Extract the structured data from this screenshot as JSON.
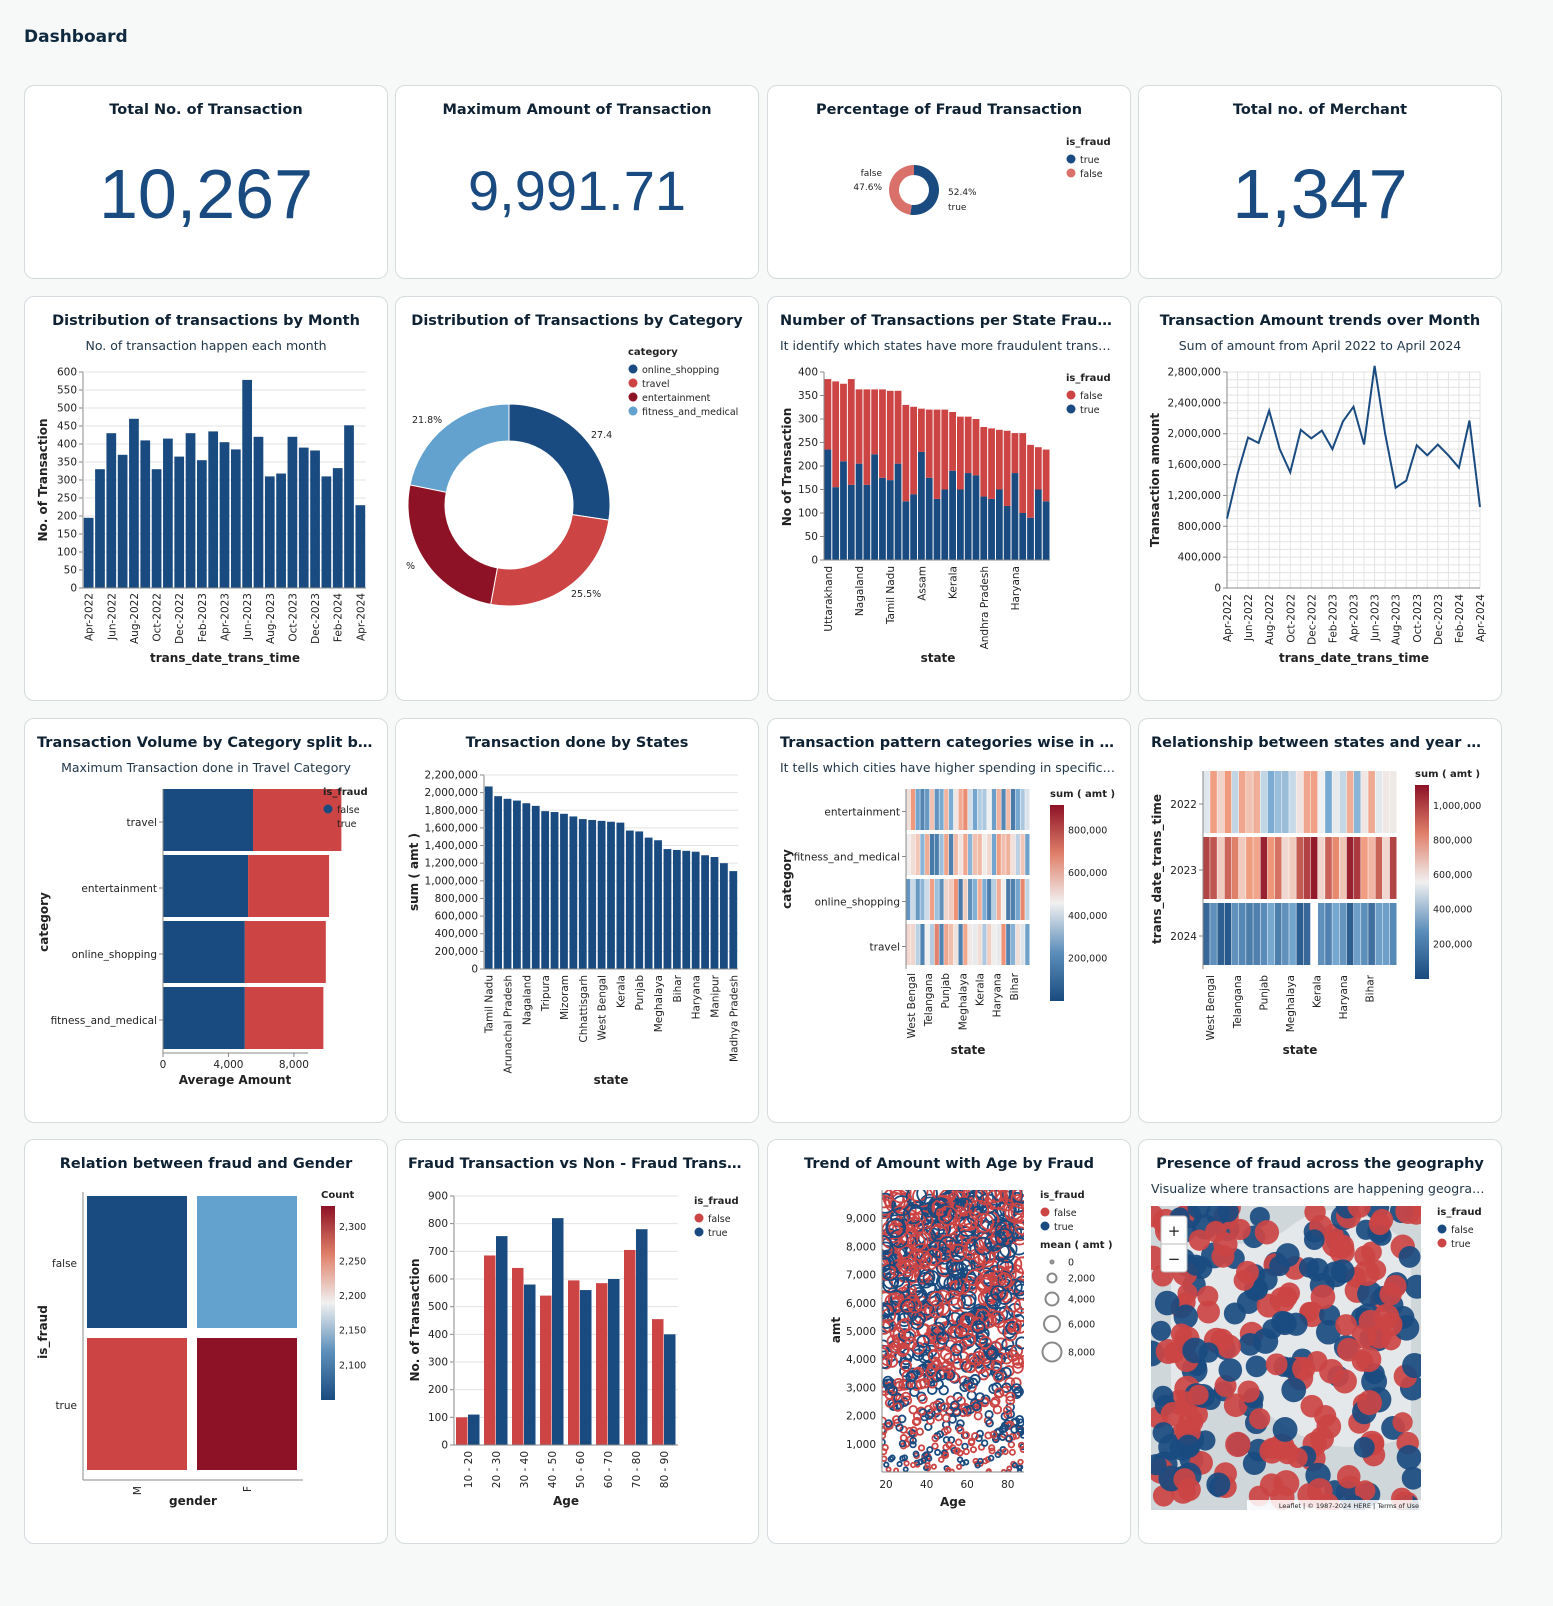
{
  "page_title": "Dashboard",
  "colors": {
    "blue": "#1a4b80",
    "red": "#cc4444",
    "darkred": "#8d1226",
    "lightblue": "#63a2cf"
  },
  "kpis": [
    {
      "title": "Total No. of Transaction",
      "value": "10,267"
    },
    {
      "title": "Maximum Amount of Transaction",
      "value": "9,991.71"
    },
    {
      "title": "Total no. of Merchant",
      "value": "1,347"
    }
  ],
  "chart_data": [
    {
      "id": "fraud_pct",
      "type": "pie",
      "title": "Percentage of Fraud Transaction",
      "legend_title": "is_fraud",
      "legend_position": "top-right",
      "categories": [
        "true",
        "false"
      ],
      "values": [
        52.4,
        47.6
      ],
      "data_labels": [
        "52.4%",
        "47.6%"
      ]
    },
    {
      "id": "by_month",
      "type": "bar",
      "title": "Distribution of transactions by Month",
      "subtitle": "No. of transaction happen each month",
      "xlabel": "trans_date_trans_time",
      "ylabel": "No. of Transaction",
      "ylim": [
        0,
        600
      ],
      "yticks": [
        "0",
        "50",
        "100",
        "150",
        "200",
        "250",
        "300",
        "350",
        "400",
        "450",
        "500",
        "550",
        "600"
      ],
      "xticks": [
        "Apr-2022",
        "Jun-2022",
        "Aug-2022",
        "Oct-2022",
        "Dec-2022",
        "Feb-2023",
        "Apr-2023",
        "Jun-2023",
        "Aug-2023",
        "Oct-2023",
        "Dec-2023",
        "Feb-2024",
        "Apr-2024"
      ],
      "values": [
        195,
        330,
        430,
        370,
        470,
        410,
        330,
        415,
        365,
        430,
        355,
        435,
        405,
        385,
        578,
        420,
        310,
        318,
        420,
        390,
        382,
        310,
        333,
        452,
        230
      ]
    },
    {
      "id": "by_category",
      "type": "pie",
      "title": "Distribution of Transactions by Category",
      "legend_title": "category",
      "legend_position": "top-right",
      "categories": [
        "online_shopping",
        "travel",
        "entertainment",
        "fitness_and_medical"
      ],
      "values": [
        27.4,
        25.5,
        25.3,
        21.8
      ],
      "data_labels": [
        "27.4",
        "25.5%",
        "%",
        "21.8%"
      ]
    },
    {
      "id": "state_fraud",
      "type": "bar",
      "title": "Number of Transactions per State Fraud wi...",
      "subtitle": "It identify which states have more fraudulent transact...",
      "xlabel": "state",
      "ylabel": "No of Transaction",
      "ylim": [
        0,
        400
      ],
      "yticks": [
        "0",
        "50",
        "100",
        "150",
        "200",
        "250",
        "300",
        "350",
        "400"
      ],
      "xticks": [
        "Uttarakhand",
        "Nagaland",
        "Tamil Nadu",
        "Assam",
        "Kerala",
        "Andhra Pradesh",
        "Haryana"
      ],
      "legend_title": "is_fraud",
      "legend_position": "top-right",
      "series": [
        {
          "name": "true",
          "values": [
            235,
            155,
            210,
            160,
            205,
            160,
            225,
            175,
            170,
            205,
            125,
            140,
            230,
            175,
            130,
            150,
            190,
            150,
            185,
            180,
            135,
            130,
            150,
            115,
            185,
            100,
            90,
            150,
            125
          ]
        },
        {
          "name": "false",
          "values": [
            150,
            225,
            165,
            225,
            158,
            203,
            138,
            188,
            190,
            155,
            205,
            186,
            92,
            145,
            190,
            170,
            125,
            155,
            120,
            120,
            148,
            150,
            127,
            160,
            85,
            170,
            155,
            90,
            110
          ]
        }
      ]
    },
    {
      "id": "amount_trend",
      "type": "line",
      "title": "Transaction Amount trends over Month",
      "subtitle": "Sum of amount from April 2022 to April 2024",
      "xlabel": "trans_date_trans_time",
      "ylabel": "Transaction amount",
      "ylim": [
        0,
        2800000
      ],
      "yticks": [
        "0",
        "400,000",
        "800,000",
        "1,200,000",
        "1,600,000",
        "2,000,000",
        "2,400,000",
        "2,800,000"
      ],
      "xticks": [
        "Apr-2022",
        "Jun-2022",
        "Aug-2022",
        "Oct-2022",
        "Dec-2022",
        "Feb-2023",
        "Apr-2023",
        "Jun-2023",
        "Aug-2023",
        "Oct-2023",
        "Dec-2023",
        "Feb-2024",
        "Apr-2024"
      ],
      "grid": true,
      "values": [
        900000,
        1480000,
        1950000,
        1880000,
        2300000,
        1800000,
        1500000,
        2050000,
        1940000,
        2040000,
        1800000,
        2160000,
        2350000,
        1860000,
        2880000,
        2000000,
        1300000,
        1390000,
        1850000,
        1720000,
        1860000,
        1720000,
        1560000,
        2170000,
        1050000
      ]
    },
    {
      "id": "category_fraud",
      "type": "bar",
      "orientation": "horizontal",
      "title": "Transaction Volume by Category split by fr...",
      "subtitle": "Maximum Transaction done in Travel Category",
      "xlabel": "Average Amount",
      "ylabel": "category",
      "xticks": [
        "0",
        "4,000",
        "8,000"
      ],
      "xlim": [
        0,
        11000
      ],
      "legend_title": "is_fraud",
      "legend_position": "top-right",
      "categories": [
        "travel",
        "entertainment",
        "online_shopping",
        "fitness_and_medical"
      ],
      "series": [
        {
          "name": "false",
          "values": [
            5500,
            5200,
            5000,
            5000
          ]
        },
        {
          "name": "true",
          "values": [
            5400,
            4950,
            4950,
            4800
          ]
        }
      ]
    },
    {
      "id": "by_state",
      "type": "bar",
      "title": "Transaction done by States",
      "xlabel": "state",
      "ylabel": "sum ( amt )",
      "ylim": [
        0,
        2200000
      ],
      "yticks": [
        "0",
        "200,000",
        "400,000",
        "600,000",
        "800,000",
        "1,000,000",
        "1,200,000",
        "1,400,000",
        "1,600,000",
        "1,800,000",
        "2,000,000",
        "2,200,000"
      ],
      "xticks": [
        "Tamil Nadu",
        "Arunachal Pradesh",
        "Nagaland",
        "Tripura",
        "Mizoram",
        "Chhattisgarh",
        "West Bengal",
        "Kerala",
        "Punjab",
        "Meghalaya",
        "Bihar",
        "Haryana",
        "Manipur",
        "Madhya Pradesh"
      ],
      "values": [
        2070000,
        1960000,
        1930000,
        1910000,
        1880000,
        1850000,
        1790000,
        1780000,
        1760000,
        1730000,
        1700000,
        1690000,
        1680000,
        1670000,
        1660000,
        1570000,
        1560000,
        1490000,
        1460000,
        1360000,
        1350000,
        1340000,
        1330000,
        1290000,
        1270000,
        1200000,
        1110000
      ]
    },
    {
      "id": "category_heat",
      "type": "heatmap",
      "title": "Transaction pattern categories wise in the...",
      "subtitle": "It tells which cities have higher spending in specific c...",
      "xlabel": "state",
      "ylabel": "category",
      "rows": [
        "entertainment",
        "fitness_and_medical",
        "online_shopping",
        "travel"
      ],
      "xticks": [
        "West Bengal",
        "Telangana",
        "Punjab",
        "Meghalaya",
        "Kerala",
        "Haryana",
        "Bihar"
      ],
      "legend_title": "sum ( amt )",
      "legend_ticks": [
        "200,000",
        "400,000",
        "600,000",
        "800,000"
      ]
    },
    {
      "id": "year_heat",
      "type": "heatmap",
      "title": "Relationship between states and year of T...",
      "xlabel": "state",
      "ylabel": "trans_date_trans_time",
      "rows": [
        "2022",
        "2023",
        "2024"
      ],
      "xticks": [
        "West Bengal",
        "Telangana",
        "Punjab",
        "Meghalaya",
        "Kerala",
        "Haryana",
        "Bihar"
      ],
      "legend_title": "sum ( amt )",
      "legend_ticks": [
        "200,000",
        "400,000",
        "600,000",
        "800,000",
        "1,000,000"
      ]
    },
    {
      "id": "gender",
      "type": "heatmap",
      "title": "Relation between fraud and Gender",
      "xlabel": "gender",
      "ylabel": "is_fraud",
      "rows": [
        "false",
        "true"
      ],
      "columns": [
        "M",
        "F"
      ],
      "values": [
        [
          2080,
          2160
        ],
        [
          2280,
          2340
        ]
      ],
      "legend_title": "Count",
      "legend_ticks": [
        "2,100",
        "2,150",
        "2,200",
        "2,250",
        "2,300"
      ]
    },
    {
      "id": "age_fraud",
      "type": "bar",
      "title": "Fraud Transaction vs Non - Fraud Transacti...",
      "xlabel": "Age",
      "ylabel": "No. of Transaction",
      "ylim": [
        0,
        900
      ],
      "yticks": [
        "0",
        "100",
        "200",
        "300",
        "400",
        "500",
        "600",
        "700",
        "800",
        "900"
      ],
      "categories": [
        "10 - 20",
        "20 - 30",
        "30 - 40",
        "40 - 50",
        "50 - 60",
        "60 - 70",
        "70 - 80",
        "80 - 90"
      ],
      "legend_title": "is_fraud",
      "legend_position": "top-right",
      "series": [
        {
          "name": "false",
          "values": [
            100,
            685,
            640,
            540,
            595,
            585,
            705,
            455
          ]
        },
        {
          "name": "true",
          "values": [
            110,
            755,
            580,
            820,
            560,
            600,
            780,
            400
          ]
        }
      ]
    },
    {
      "id": "age_amount",
      "type": "scatter",
      "title": "Trend of Amount with Age by Fraud",
      "xlabel": "Age",
      "ylabel": "amt",
      "xlim": [
        18,
        88
      ],
      "ylim": [
        0,
        10000
      ],
      "xticks": [
        "20",
        "40",
        "60",
        "80"
      ],
      "yticks": [
        "1,000",
        "2,000",
        "3,000",
        "4,000",
        "5,000",
        "6,000",
        "7,000",
        "8,000",
        "9,000"
      ],
      "legend_title": "is_fraud",
      "legend_position": "top-right",
      "legend_items": [
        "false",
        "true"
      ],
      "size_legend_title": "mean ( amt )",
      "size_legend_items": [
        "0",
        "2,000",
        "4,000",
        "6,000",
        "8,000"
      ]
    },
    {
      "id": "geo",
      "type": "scatter",
      "title": "Presence of fraud across the geography",
      "subtitle": "Visualize where transactions are happening geograp...",
      "legend_title": "is_fraud",
      "legend_position": "top-right",
      "legend_items": [
        "false",
        "true"
      ],
      "map_controls": [
        "+",
        "−"
      ],
      "attribution": "Leaflet | © 1987-2024 HERE | Terms of Use"
    }
  ],
  "pie_legend": {
    "fraud": [
      "true",
      "false"
    ]
  }
}
